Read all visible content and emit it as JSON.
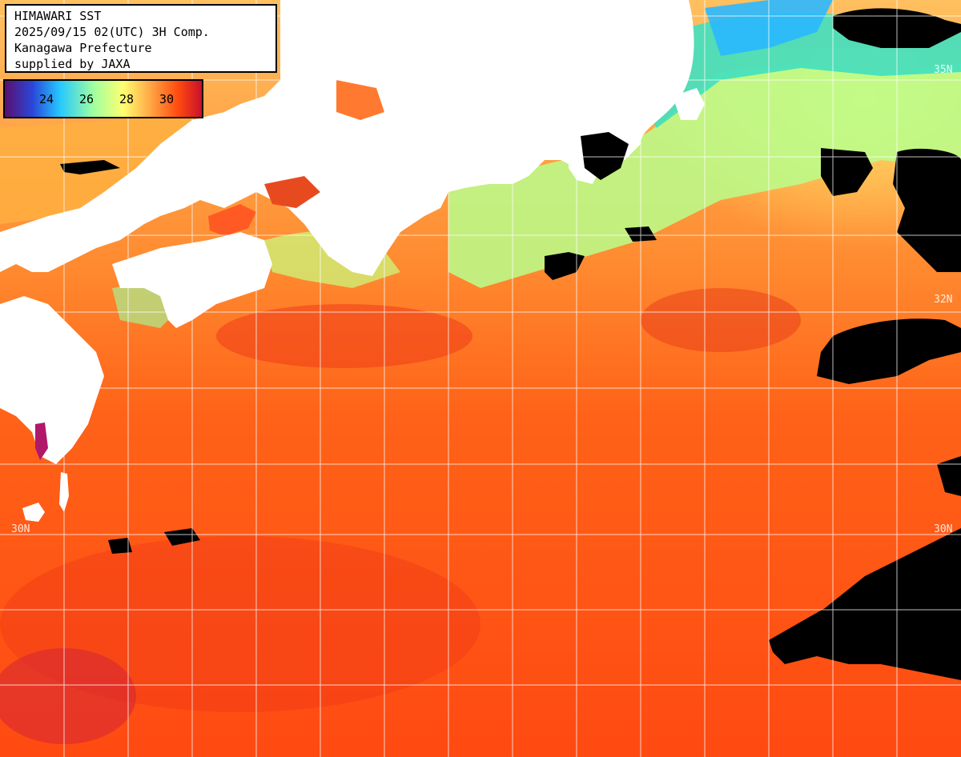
{
  "title_lines": [
    "HIMAWARI SST",
    "2025/09/15 02(UTC) 3H Comp.",
    "Kanagawa Prefecture",
    "supplied by JAXA"
  ],
  "legend": {
    "ticks": [
      "24",
      "26",
      "28",
      "30"
    ],
    "colors": [
      "#5a0f6e",
      "#2a46d8",
      "#25c8ff",
      "#9fffa0",
      "#ffff70",
      "#ffa040",
      "#ff4a10",
      "#c8102a"
    ]
  },
  "latitude_labels": {
    "upper_right": "35N",
    "middle_right": "32N",
    "left_30": "30N",
    "right_30": "30N"
  },
  "colors": {
    "land": "#ffffff",
    "cloud": "#000000",
    "warm_sea": "#ff5a14",
    "hot_sea": "#ef3a18",
    "mid_sea": "#ffa040",
    "cool_sea": "#ffe070",
    "cold_sea": "#a8ff90",
    "colder_sea": "#40e0c8",
    "cyan_sea": "#30c8ff",
    "grid": "#ffffff"
  }
}
